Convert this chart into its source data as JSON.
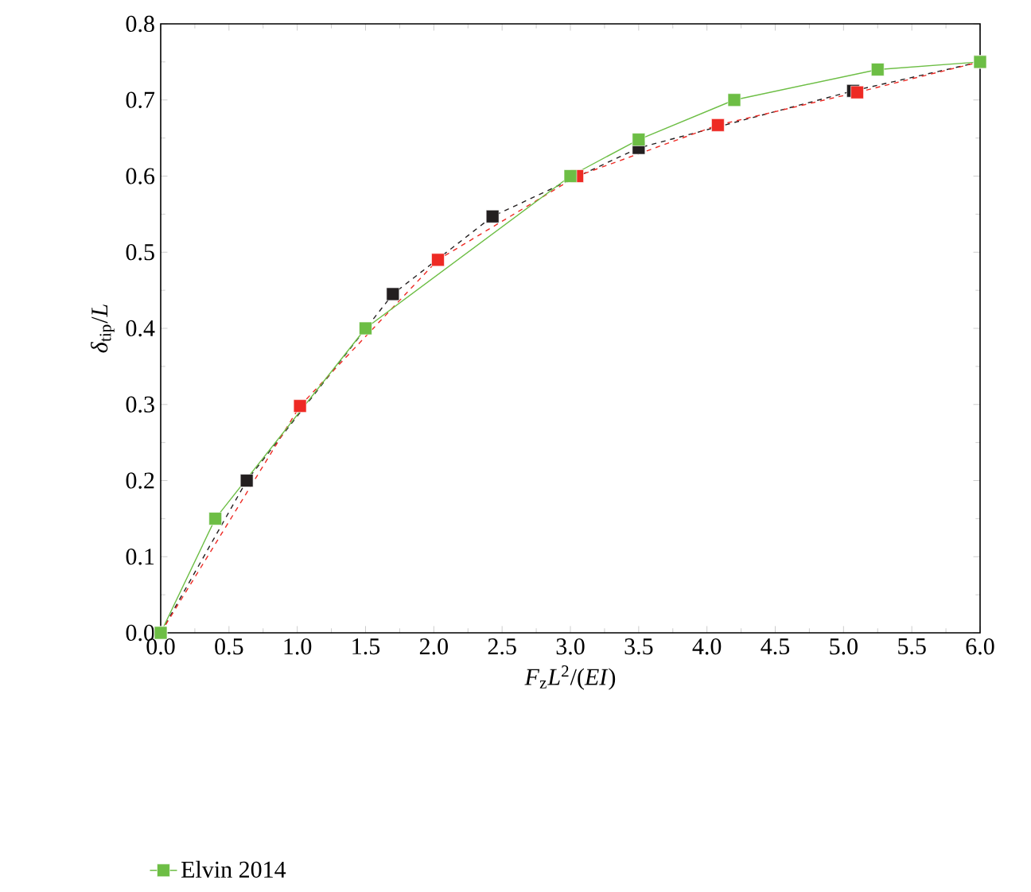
{
  "chart_data": {
    "type": "line",
    "xlabel": "*F*$_{z}$*L*$^{2}$/(*EI*)",
    "ylabel": "*δ*$_{tip}$/*L*",
    "xlim": [
      0,
      6
    ],
    "ylim": [
      0,
      0.8
    ],
    "xticks": [
      {
        "value": 0,
        "label": "0.0"
      },
      0.5,
      {
        "value": 1,
        "label": "1.0"
      },
      1.5,
      {
        "value": 2,
        "label": "2.0"
      },
      2.5,
      {
        "value": 3,
        "label": "3.0"
      },
      3.5,
      {
        "value": 4,
        "label": "4.0"
      },
      4.5,
      {
        "value": 5,
        "label": "5.0"
      },
      5.5,
      {
        "value": 6,
        "label": "6.0"
      }
    ],
    "yticks": [
      {
        "value": 0,
        "label": "0.0"
      },
      0.1,
      0.2,
      0.3,
      0.4,
      0.5,
      0.6,
      0.7,
      0.8
    ],
    "grid": false,
    "legend": "bottom",
    "marker": "square",
    "series": [
      {
        "color": "#231f20",
        "line_style": "dashed",
        "x": [
          0,
          0.63,
          1.7,
          2.43,
          3.5,
          5.07,
          6.0
        ],
        "values": [
          0,
          0.2,
          0.445,
          0.547,
          0.637,
          0.712,
          0.75
        ]
      },
      {
        "color": "#ee2a24",
        "line_style": "dashed",
        "x": [
          0,
          1.02,
          2.03,
          3.05,
          4.08,
          5.1,
          6.0
        ],
        "values": [
          0,
          0.298,
          0.49,
          0.6,
          0.667,
          0.71,
          0.75
        ]
      },
      {
        "name": "Elvin 2014",
        "color": "#6dbe45",
        "line_style": "solid",
        "x": [
          0,
          0.4,
          1.5,
          3.0,
          3.5,
          4.2,
          5.25,
          6.0
        ],
        "values": [
          0,
          0.15,
          0.4,
          0.6,
          0.648,
          0.7,
          0.74,
          0.75
        ]
      }
    ]
  }
}
